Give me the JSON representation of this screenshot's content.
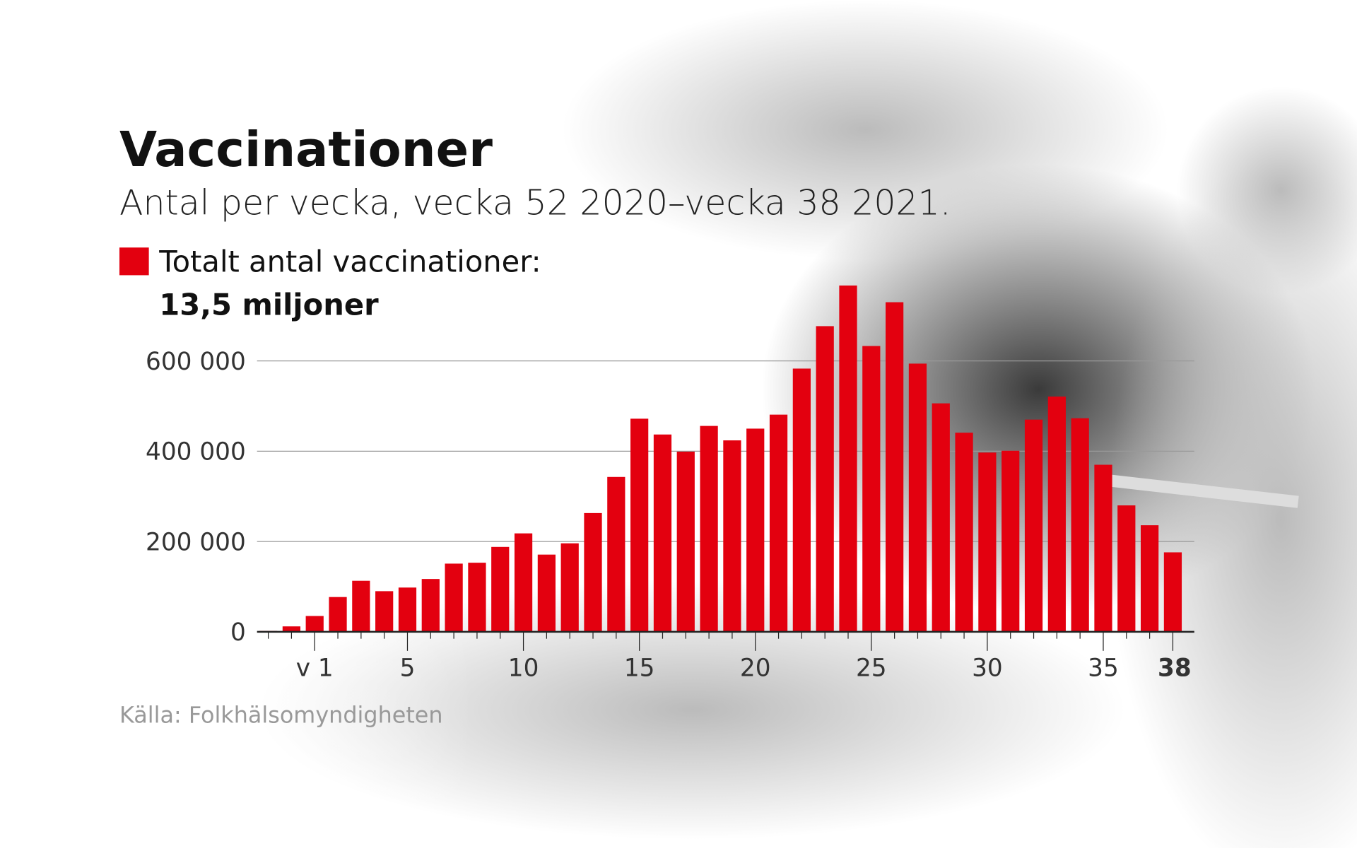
{
  "chart_data": {
    "type": "bar",
    "title": "Vaccinationer",
    "subtitle": "Antal per vecka, vecka 52 2020–vecka 38 2021.",
    "legend_label": "Totalt antal vaccinationer:",
    "annotation": "13,5 miljoner",
    "source": "Källa: Folkhälsomyndigheten",
    "color": "#e3000f",
    "categories": [
      null,
      null,
      "v 1",
      null,
      null,
      null,
      "5",
      null,
      null,
      null,
      null,
      "10",
      null,
      null,
      null,
      null,
      "15",
      null,
      null,
      null,
      null,
      "20",
      null,
      null,
      null,
      null,
      "25",
      null,
      null,
      null,
      null,
      "30",
      null,
      null,
      null,
      null,
      "35",
      null,
      null,
      "38"
    ],
    "values": [
      2000,
      12000,
      35000,
      77000,
      113000,
      90000,
      98000,
      117000,
      151000,
      153000,
      188000,
      218000,
      171000,
      196000,
      263000,
      343000,
      472000,
      437000,
      399000,
      456000,
      424000,
      450000,
      481000,
      583000,
      677000,
      767000,
      633000,
      730000,
      594000,
      506000,
      441000,
      397000,
      401000,
      470000,
      521000,
      473000,
      370000,
      280000,
      236000,
      176000
    ],
    "ylim": [
      0,
      800000
    ],
    "yticks": [
      0,
      {
        "value": 200000,
        "label": "200 000"
      },
      {
        "value": 400000,
        "label": "400 000"
      },
      {
        "value": 600000,
        "label": "600 000"
      }
    ],
    "grid": true
  }
}
